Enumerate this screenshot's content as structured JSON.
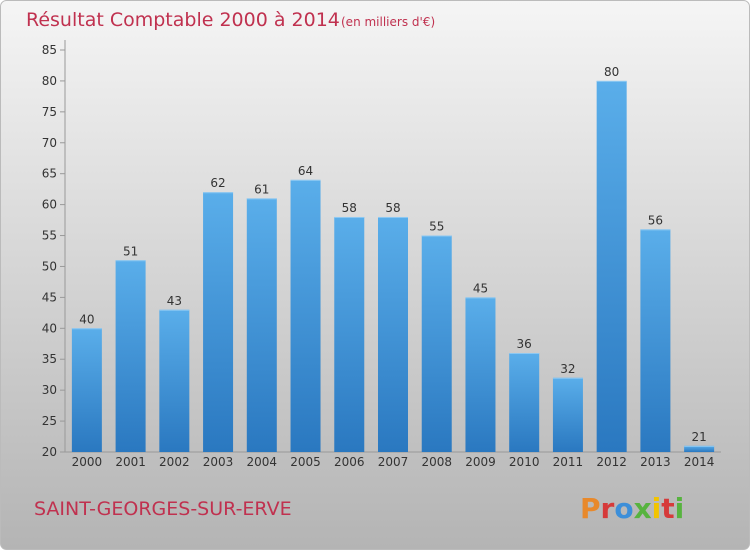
{
  "chart_data": {
    "type": "bar",
    "title": "Résultat Comptable 2000 à 2014",
    "unit": "(en milliers d'€)",
    "categories": [
      "2000",
      "2001",
      "2002",
      "2003",
      "2004",
      "2005",
      "2006",
      "2007",
      "2008",
      "2009",
      "2010",
      "2011",
      "2012",
      "2013",
      "2014"
    ],
    "values": [
      40,
      51,
      43,
      62,
      61,
      64,
      58,
      58,
      55,
      45,
      36,
      32,
      80,
      56,
      21
    ],
    "y_ticks": [
      20,
      25,
      30,
      35,
      40,
      45,
      50,
      55,
      60,
      65,
      70,
      75,
      80,
      85
    ],
    "ylim": [
      20,
      85
    ],
    "grid": false,
    "bar_color": "#3d8fd9",
    "title_color": "#c0314f"
  },
  "footer": {
    "commune": "SAINT-GEORGES-SUR-ERVE",
    "brand": "Proxiti",
    "brand_colors": [
      "#e8892b",
      "#d63a3a",
      "#3d8fd9",
      "#57b33f",
      "#f2c400",
      "#d63a3a",
      "#57b33f"
    ]
  }
}
